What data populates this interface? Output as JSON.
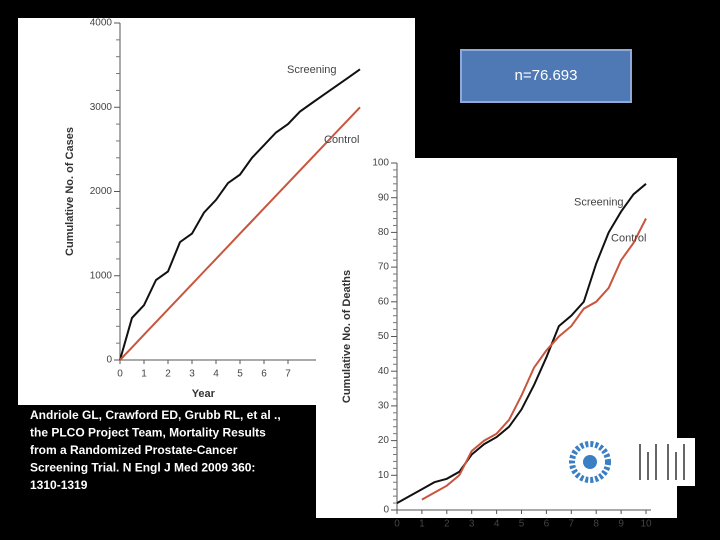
{
  "chart_data": [
    {
      "type": "line",
      "xlabel": "Year",
      "ylabel": "Cumulative No. of Cases",
      "x": [
        0,
        0.5,
        1,
        1.5,
        2,
        2.5,
        3,
        3.5,
        4,
        4.5,
        5,
        5.5,
        6,
        6.5,
        7,
        7.5,
        8,
        8.5,
        9,
        9.5,
        10
      ],
      "xlim": [
        0,
        10.5
      ],
      "xticks": [
        0,
        1,
        2,
        3,
        4,
        5,
        6,
        7
      ],
      "ylim": [
        0,
        4000
      ],
      "yticks": [
        0,
        1000,
        2000,
        3000,
        4000
      ],
      "series": [
        {
          "name": "Screening",
          "color": "#111111",
          "values": [
            0,
            500,
            650,
            950,
            1050,
            1400,
            1500,
            1750,
            1900,
            2100,
            2200,
            2400,
            2550,
            2700,
            2800,
            2950,
            3050,
            3150,
            3250,
            3350,
            3450
          ]
        },
        {
          "name": "Control",
          "color": "#c8553d",
          "values": [
            0,
            150,
            300,
            450,
            600,
            750,
            900,
            1050,
            1200,
            1350,
            1500,
            1650,
            1800,
            1950,
            2100,
            2250,
            2400,
            2550,
            2700,
            2850,
            3000
          ]
        }
      ]
    },
    {
      "type": "line",
      "ylabel": "Cumulative No. of Deaths",
      "x": [
        0,
        0.5,
        1,
        1.5,
        2,
        2.5,
        3,
        3.5,
        4,
        4.5,
        5,
        5.5,
        6,
        6.5,
        7,
        7.5,
        8,
        8.5,
        9,
        9.5,
        10
      ],
      "xlim": [
        0,
        10.2
      ],
      "xticks": [
        0,
        1,
        2,
        3,
        4,
        5,
        6,
        7,
        8,
        9,
        10
      ],
      "ylim": [
        0,
        100
      ],
      "yticks": [
        0,
        10,
        20,
        30,
        40,
        50,
        60,
        70,
        80,
        90,
        100
      ],
      "series": [
        {
          "name": "Screening",
          "color": "#111111",
          "values": [
            2,
            4,
            6,
            8,
            9,
            11,
            16,
            19,
            21,
            24,
            29,
            36,
            44,
            53,
            56,
            60,
            71,
            80,
            86,
            91,
            94
          ]
        },
        {
          "name": "Control",
          "color": "#c8553d",
          "values": [
            null,
            null,
            3,
            5,
            7,
            10,
            17,
            20,
            22,
            26,
            33,
            41,
            46,
            50,
            53,
            58,
            60,
            64,
            72,
            77,
            84
          ]
        }
      ]
    }
  ],
  "sample_box": "n=76.693",
  "citation": [
    "Andriole GL, Crawford ED, Grubb RL, et al .,",
    "the PLCO Project Team,  Mortality Results",
    "from a Randomized Prostate-Cancer",
    "Screening Trial. N Engl J Med 2009 360:",
    "1310-1319"
  ]
}
